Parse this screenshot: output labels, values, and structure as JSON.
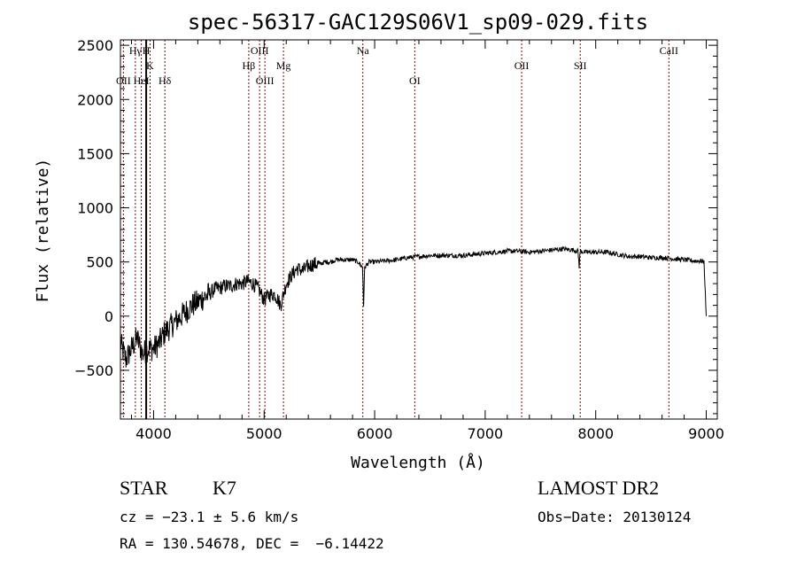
{
  "chart_data": {
    "type": "line",
    "title": "spec-56317-GAC129S06V1_sp09-029.fits",
    "xlabel": "Wavelength (Å)",
    "ylabel": "Flux (relative)",
    "xlim": [
      3700,
      9100
    ],
    "ylim": [
      -950,
      2550
    ],
    "x_ticks": [
      4000,
      5000,
      6000,
      7000,
      8000,
      9000
    ],
    "y_ticks": [
      -500,
      0,
      500,
      1000,
      1500,
      2000,
      2500
    ],
    "grid": false,
    "series": [
      {
        "color": "#000000",
        "x": [
          3700,
          3750,
          3800,
          3850,
          3900,
          3950,
          4000,
          4050,
          4100,
          4150,
          4200,
          4250,
          4300,
          4350,
          4400,
          4450,
          4500,
          4550,
          4600,
          4650,
          4700,
          4750,
          4800,
          4850,
          4900,
          4950,
          5000,
          5050,
          5100,
          5150,
          5200,
          5250,
          5300,
          5350,
          5400,
          5450,
          5500,
          5550,
          5600,
          5650,
          5700,
          5750,
          5800,
          5850,
          5890,
          5900,
          5910,
          5950,
          6000,
          6100,
          6200,
          6300,
          6400,
          6500,
          6600,
          6700,
          6800,
          6900,
          7000,
          7100,
          7200,
          7300,
          7400,
          7500,
          7600,
          7700,
          7800,
          7840,
          7850,
          7860,
          7900,
          8000,
          8100,
          8200,
          8300,
          8400,
          8500,
          8600,
          8700,
          8800,
          8900,
          8950,
          8980,
          9000
        ],
        "values": [
          -250,
          -400,
          -300,
          -200,
          -350,
          -300,
          -300,
          -250,
          -150,
          -100,
          -50,
          0,
          50,
          100,
          130,
          170,
          200,
          250,
          260,
          280,
          280,
          300,
          300,
          320,
          300,
          250,
          150,
          200,
          200,
          100,
          300,
          380,
          440,
          420,
          460,
          480,
          480,
          500,
          500,
          520,
          520,
          520,
          520,
          500,
          450,
          100,
          450,
          500,
          500,
          510,
          520,
          540,
          550,
          560,
          560,
          560,
          560,
          570,
          580,
          590,
          600,
          600,
          590,
          600,
          610,
          620,
          610,
          600,
          460,
          600,
          590,
          590,
          590,
          570,
          550,
          550,
          540,
          540,
          530,
          520,
          510,
          510,
          500,
          0
        ]
      }
    ],
    "line_markers": [
      {
        "label": "OII",
        "x": 3727,
        "label_row": 3,
        "color": "#8b0000"
      },
      {
        "label": "Hγ",
        "x": 3835,
        "label_row": 1,
        "color": "#8b0000"
      },
      {
        "label": "HeI",
        "x": 3889,
        "label_row": 3,
        "color": "#8b0000"
      },
      {
        "label": "H",
        "x": 3933,
        "label_row": 1,
        "color": "#000000"
      },
      {
        "label": "K",
        "x": 3968,
        "label_row": 2,
        "color": "#8b0000"
      },
      {
        "label": "Hδ",
        "x": 4102,
        "label_row": 3,
        "color": "#8b0000"
      },
      {
        "label": "Hβ",
        "x": 4861,
        "label_row": 2,
        "color": "#8b0000"
      },
      {
        "label": "OIII",
        "x": 4959,
        "label_row": 1,
        "color": "#8b0000"
      },
      {
        "label": "OIII",
        "x": 5007,
        "label_row": 3,
        "color": "#8b0000"
      },
      {
        "label": "Mg",
        "x": 5175,
        "label_row": 2,
        "color": "#8b0000"
      },
      {
        "label": "Na",
        "x": 5893,
        "label_row": 1,
        "color": "#8b0000"
      },
      {
        "label": "OI",
        "x": 6363,
        "label_row": 3,
        "color": "#8b0000"
      },
      {
        "label": "OII",
        "x": 7330,
        "label_row": 2,
        "color": "#8b0000"
      },
      {
        "label": "SII",
        "x": 7860,
        "label_row": 2,
        "color": "#8b0000"
      },
      {
        "label": "CaII",
        "x": 8662,
        "label_row": 1,
        "color": "#8b0000"
      }
    ]
  },
  "info": {
    "object_class": "STAR",
    "subclass": "K7",
    "survey": "LAMOST DR2",
    "cz": "cz = −23.1 ± 5.6 km/s",
    "obs_date": "Obs−Date: 20130124",
    "radec": "RA = 130.54678, DEC =  −6.14422"
  }
}
